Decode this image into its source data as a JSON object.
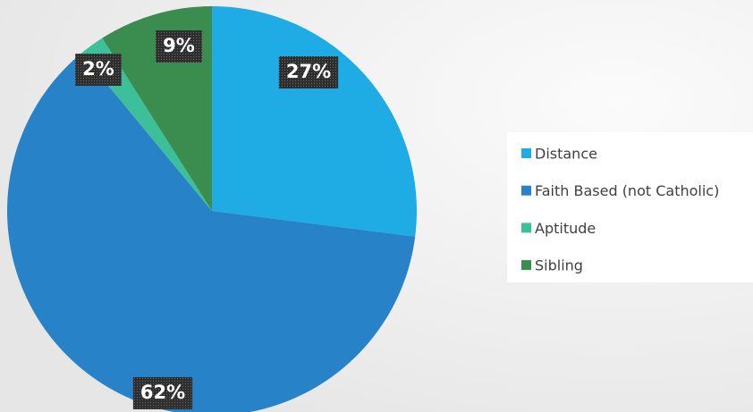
{
  "chart_data": {
    "type": "pie",
    "categories": [
      "Distance",
      "Faith Based (not Catholic)",
      "Aptitude",
      "Sibling"
    ],
    "values": [
      27,
      62,
      2,
      9
    ],
    "value_labels": [
      "27%",
      "62%",
      "2%",
      "9%"
    ],
    "colors": [
      "#1fabe3",
      "#2882c8",
      "#3dbf9a",
      "#3a8d4f"
    ],
    "legend": "right"
  }
}
